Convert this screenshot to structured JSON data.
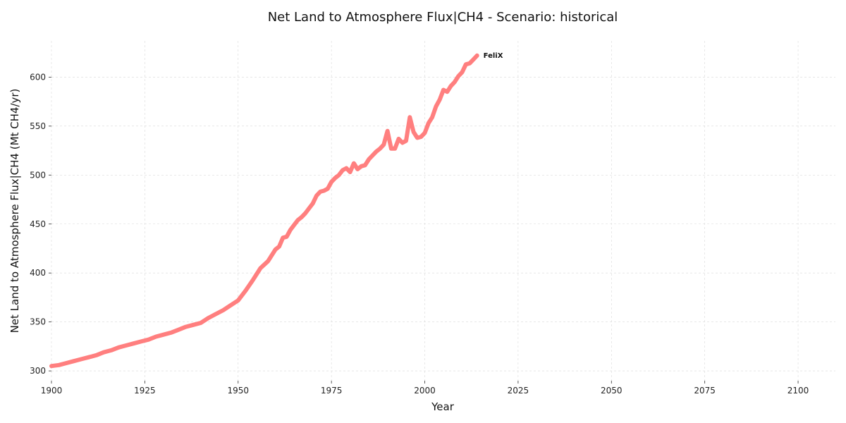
{
  "chart_data": {
    "type": "line",
    "title": "Net Land to Atmosphere Flux|CH4 - Scenario: historical",
    "xlabel": "Year",
    "ylabel": "Net Land to Atmosphere Flux|CH4 (Mt CH4/yr)",
    "xlim": [
      1900,
      2110
    ],
    "ylim": [
      290,
      637
    ],
    "xticks": [
      1900,
      1925,
      1950,
      1975,
      2000,
      2025,
      2050,
      2075,
      2100
    ],
    "yticks": [
      300,
      350,
      400,
      450,
      500,
      550,
      600
    ],
    "grid": true,
    "legend": "none",
    "series": [
      {
        "name": "FeliX",
        "color": "#ff7f7f",
        "x": [
          1900,
          1902,
          1904,
          1906,
          1908,
          1910,
          1912,
          1914,
          1916,
          1918,
          1920,
          1922,
          1924,
          1926,
          1928,
          1930,
          1932,
          1934,
          1936,
          1938,
          1940,
          1942,
          1944,
          1946,
          1948,
          1950,
          1952,
          1954,
          1956,
          1958,
          1960,
          1961,
          1962,
          1963,
          1964,
          1965,
          1966,
          1967,
          1968,
          1969,
          1970,
          1971,
          1972,
          1973,
          1974,
          1975,
          1976,
          1977,
          1978,
          1979,
          1980,
          1981,
          1982,
          1983,
          1984,
          1985,
          1986,
          1987,
          1988,
          1989,
          1990,
          1991,
          1992,
          1993,
          1994,
          1995,
          1996,
          1997,
          1998,
          1999,
          2000,
          2001,
          2002,
          2003,
          2004,
          2005,
          2006,
          2007,
          2008,
          2009,
          2010,
          2011,
          2012,
          2013,
          2014
        ],
        "values": [
          305,
          306,
          308,
          310,
          312,
          314,
          316,
          319,
          321,
          324,
          326,
          328,
          330,
          332,
          335,
          337,
          339,
          342,
          345,
          347,
          349,
          354,
          358,
          362,
          367,
          372,
          382,
          393,
          405,
          412,
          424,
          427,
          436,
          437,
          444,
          449,
          454,
          457,
          461,
          466,
          471,
          479,
          483,
          484,
          486,
          493,
          497,
          500,
          505,
          507,
          503,
          512,
          506,
          509,
          510,
          516,
          520,
          524,
          527,
          531,
          545,
          527,
          527,
          537,
          533,
          535,
          559,
          544,
          538,
          539,
          543,
          553,
          559,
          570,
          577,
          587,
          585,
          591,
          595,
          601,
          605,
          613,
          614,
          618,
          622
        ]
      }
    ]
  }
}
